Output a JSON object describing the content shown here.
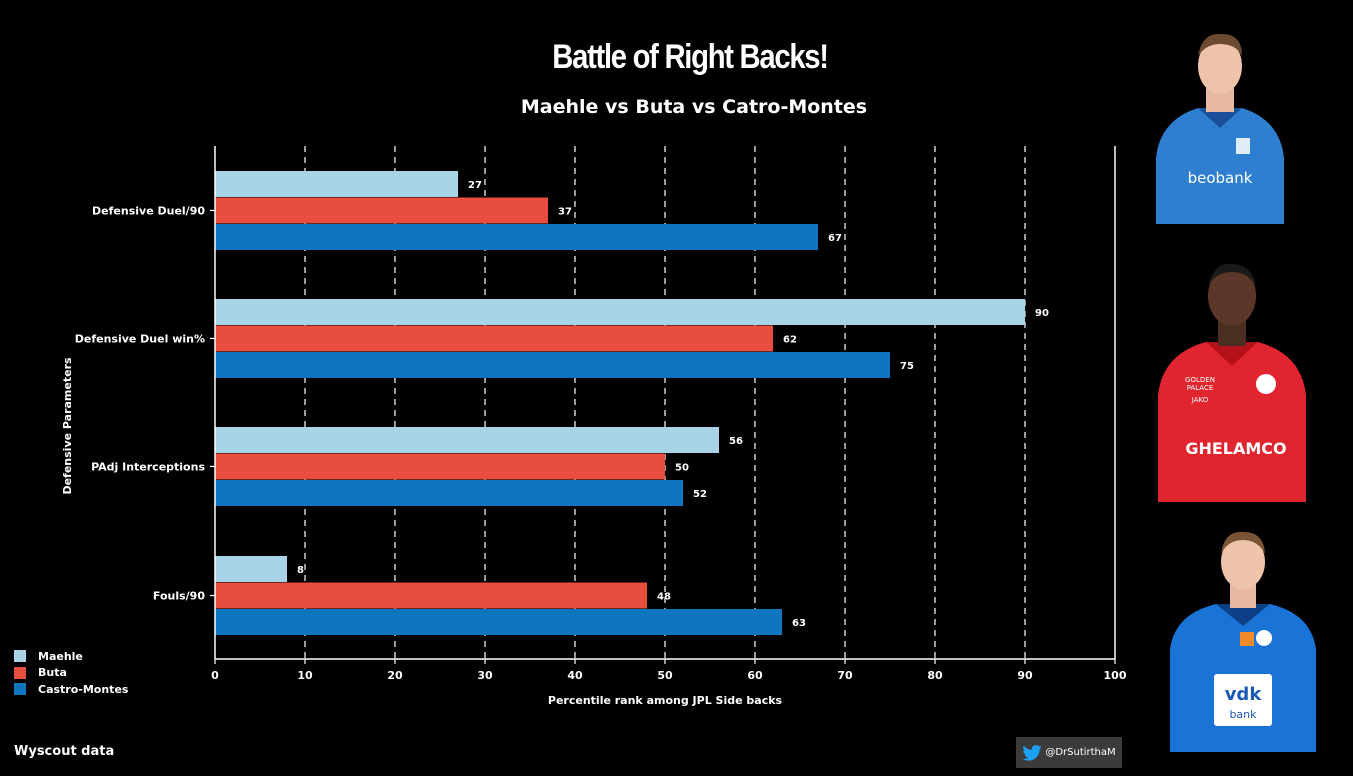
{
  "chart_data": {
    "type": "bar",
    "orientation": "horizontal",
    "title": "Battle of Right Backs!",
    "subtitle": "Maehle vs Buta vs Catro-Montes",
    "xlabel": "Percentile rank among JPL Side backs",
    "ylabel": "Defensive Parameters",
    "xlim": [
      0,
      100
    ],
    "xticks": [
      0,
      10,
      20,
      30,
      40,
      50,
      60,
      70,
      80,
      90,
      100
    ],
    "grid": "vertical dashed",
    "legend_position": "bottom-left",
    "categories": [
      "Defensive Duel/90",
      "Defensive Duel win%",
      "PAdj Interceptions",
      "Fouls/90"
    ],
    "series": [
      {
        "name": "Maehle",
        "color": "#a8d3e6",
        "values": [
          27,
          90,
          56,
          8
        ]
      },
      {
        "name": "Buta",
        "color": "#e84d3d",
        "values": [
          37,
          62,
          50,
          48
        ]
      },
      {
        "name": "Castro-Montes",
        "color": "#0e76bf",
        "values": [
          67,
          75,
          52,
          63
        ]
      }
    ]
  },
  "footer": {
    "source": "Wyscout data",
    "credit": "@DrSutirthaM",
    "credit_icon": "twitter-bird-icon"
  },
  "photos": [
    {
      "name": "maehle-photo",
      "kit_color": "#2f7fd0",
      "sponsor": "beobank"
    },
    {
      "name": "buta-photo",
      "kit_color": "#e0252e",
      "sponsor": "GHELAMCO"
    },
    {
      "name": "castro-montes-photo",
      "kit_color": "#1a73d6",
      "sponsor": "vdk bank"
    }
  ]
}
